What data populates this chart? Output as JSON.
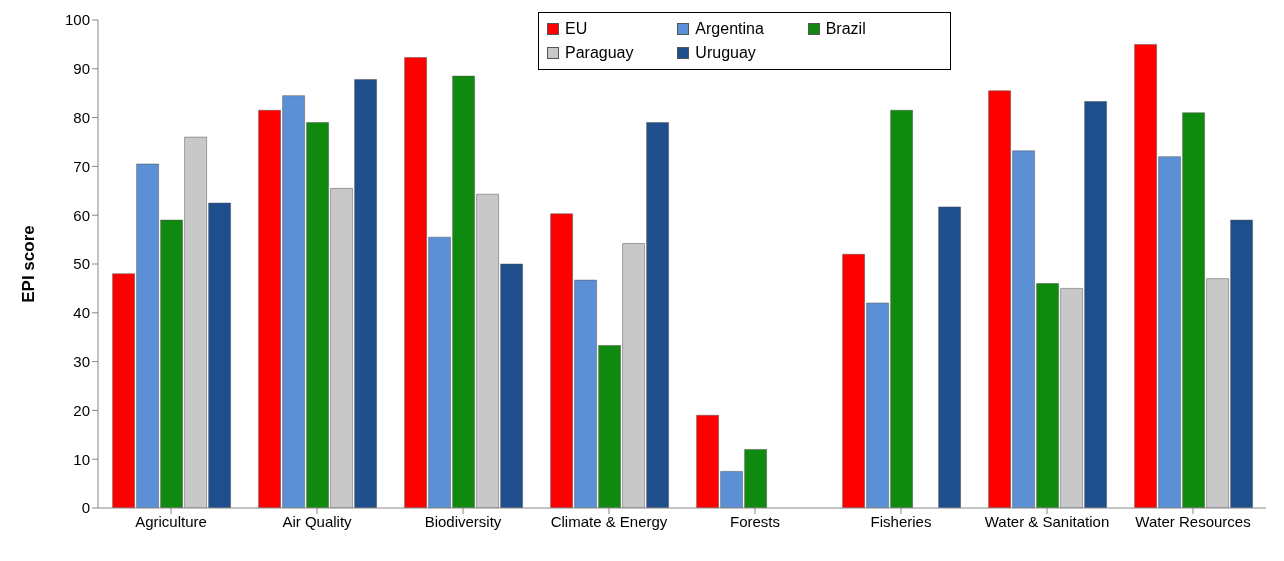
{
  "chart_data": {
    "type": "bar",
    "ylabel": "EPI score",
    "categories": [
      "Agriculture",
      "Air Quality",
      "Biodiversity",
      "Climate & Energy",
      "Forests",
      "Fisheries",
      "Water & Sanitation",
      "Water Resources"
    ],
    "series": [
      {
        "name": "EU",
        "color": "#ff0000",
        "values": [
          48,
          81.5,
          92.3,
          60.3,
          19,
          52,
          85.5,
          95
        ]
      },
      {
        "name": "Argentina",
        "color": "#5b8fd6",
        "values": [
          70.5,
          84.5,
          55.5,
          46.7,
          7.5,
          42,
          73.2,
          72
        ]
      },
      {
        "name": "Brazil",
        "color": "#0f8a0f",
        "values": [
          59,
          79,
          88.5,
          33.3,
          12,
          81.5,
          46,
          81
        ]
      },
      {
        "name": "Paraguay",
        "color": "#c8c8c8",
        "values": [
          76,
          65.5,
          64.3,
          54.2,
          null,
          null,
          45,
          47
        ]
      },
      {
        "name": "Uruguay",
        "color": "#1f4e8c",
        "values": [
          62.5,
          87.8,
          50,
          79,
          null,
          61.7,
          83.3,
          59
        ]
      }
    ],
    "ylim": [
      0,
      100
    ],
    "yticks": [
      0,
      10,
      20,
      30,
      40,
      50,
      60,
      70,
      80,
      90,
      100
    ],
    "grid": false,
    "legend": "top"
  }
}
